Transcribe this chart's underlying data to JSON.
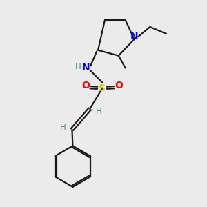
{
  "bg_color": "#ebebeb",
  "bond_color": "#1a1a1a",
  "N_color": "#0000ff",
  "S_color": "#cccc00",
  "O_color": "#ff0000",
  "H_color": "#4a9090",
  "line_width": 1.6,
  "dbo": 0.018,
  "fig_width": 3.0,
  "fig_height": 3.0,
  "dpi": 100,
  "xlim": [
    0,
    3.0
  ],
  "ylim": [
    0,
    3.0
  ]
}
